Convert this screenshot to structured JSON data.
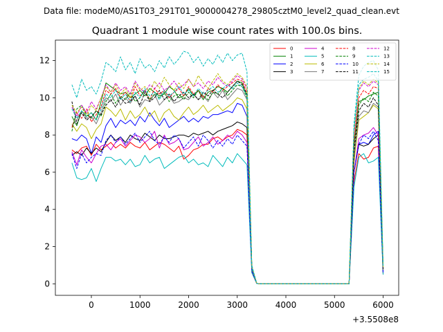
{
  "figure": {
    "suptitle": "Data file: modeM0/AS1T03_291T01_9000004278_29805cztM0_level2_quad_clean.evt"
  },
  "chart_data": {
    "type": "line",
    "title": "Quadrant 1 module wise count rates with 100.0s bins.",
    "xlabel": "",
    "ylabel": "",
    "x_offset_label": "+3.5508e8",
    "xlim": [
      -740,
      6320
    ],
    "ylim": [
      -0.62,
      13.1
    ],
    "x_ticks": [
      0,
      1000,
      2000,
      3000,
      4000,
      5000,
      6000
    ],
    "y_ticks": [
      0,
      2,
      4,
      6,
      8,
      10,
      12
    ],
    "legend": {
      "location": "top-right",
      "columns": 4
    },
    "gap": {
      "x": [
        3450,
        5250
      ]
    },
    "x_segment1": [
      -400,
      -300,
      -200,
      -100,
      0,
      100,
      200,
      300,
      400,
      500,
      600,
      700,
      800,
      900,
      1000,
      1100,
      1200,
      1300,
      1400,
      1500,
      1600,
      1700,
      1800,
      1900,
      2000,
      2100,
      2200,
      2300,
      2400,
      2500,
      2600,
      2700,
      2800,
      2900,
      3000,
      3100,
      3200,
      3300,
      3400
    ],
    "x_segment2": [
      5300,
      5400,
      5500,
      5600,
      5700,
      5800,
      5900,
      6000
    ],
    "series": [
      {
        "name": "0",
        "color": "#ff0000",
        "dash": "solid",
        "seg1": [
          7.2,
          7.0,
          7.3,
          7.4,
          6.9,
          7.5,
          7.2,
          7.4,
          7.6,
          7.3,
          7.5,
          7.3,
          7.6,
          7.4,
          7.3,
          7.6,
          7.2,
          7.4,
          7.6,
          7.5,
          7.3,
          7.1,
          7.4,
          6.7,
          6.9,
          7.2,
          7.3,
          7.5,
          7.5,
          7.8,
          7.9,
          7.7,
          7.9,
          8.0,
          8.3,
          8.2,
          8.0,
          0.6,
          0.02
        ],
        "seg2": [
          0.0,
          5.5,
          7.0,
          6.7,
          6.8,
          7.3,
          7.4,
          0.6
        ]
      },
      {
        "name": "1",
        "color": "#008000",
        "dash": "solid",
        "seg1": [
          9.0,
          8.5,
          9.3,
          9.0,
          9.2,
          8.8,
          9.8,
          10.8,
          10.6,
          10.4,
          10.2,
          10.3,
          10.0,
          10.2,
          10.4,
          10.1,
          10.5,
          10.3,
          10.1,
          10.2,
          10.6,
          10.4,
          10.0,
          10.1,
          10.5,
          10.1,
          10.4,
          9.9,
          10.3,
          10.4,
          10.6,
          10.5,
          10.3,
          10.6,
          10.9,
          10.8,
          10.1,
          0.9,
          0.02
        ],
        "seg2": [
          0.0,
          7.5,
          9.8,
          9.9,
          10.1,
          10.2,
          10.3,
          0.8
        ]
      },
      {
        "name": "2",
        "color": "#0000ff",
        "dash": "solid",
        "seg1": [
          7.8,
          7.7,
          8.0,
          7.8,
          7.0,
          7.9,
          7.6,
          8.5,
          8.9,
          8.4,
          8.8,
          8.6,
          8.8,
          8.5,
          9.0,
          8.7,
          9.2,
          8.8,
          8.5,
          8.9,
          8.4,
          8.6,
          8.8,
          9.0,
          8.7,
          8.9,
          8.7,
          9.0,
          8.9,
          9.1,
          9.1,
          9.2,
          9.3,
          9.2,
          9.7,
          9.6,
          9.0,
          0.8,
          0.02
        ],
        "seg2": [
          0.0,
          6.0,
          7.5,
          7.6,
          7.5,
          8.0,
          8.2,
          0.7
        ]
      },
      {
        "name": "3",
        "color": "#000000",
        "dash": "solid",
        "seg1": [
          6.9,
          7.1,
          6.9,
          7.3,
          7.0,
          7.3,
          7.1,
          7.6,
          8.0,
          7.7,
          7.9,
          7.6,
          8.0,
          7.8,
          7.7,
          8.1,
          7.9,
          7.7,
          8.0,
          7.8,
          7.8,
          7.9,
          8.0,
          8.0,
          7.9,
          8.1,
          8.0,
          8.1,
          8.2,
          8.0,
          8.2,
          8.3,
          8.4,
          8.5,
          8.7,
          8.6,
          8.4,
          0.7,
          0.02
        ],
        "seg2": [
          0.0,
          6.0,
          7.5,
          7.4,
          7.5,
          7.8,
          8.0,
          0.5
        ]
      },
      {
        "name": "4",
        "color": "#cc00cc",
        "dash": "solid",
        "seg1": [
          7.1,
          6.4,
          7.2,
          6.8,
          6.5,
          7.0,
          7.4,
          7.5,
          7.2,
          7.6,
          7.8,
          7.4,
          7.7,
          8.0,
          7.9,
          7.6,
          7.8,
          8.2,
          7.3,
          8.0,
          7.5,
          7.6,
          7.8,
          7.2,
          7.3,
          7.6,
          7.9,
          7.4,
          7.6,
          7.9,
          7.5,
          7.7,
          8.0,
          7.8,
          8.2,
          8.0,
          7.6,
          0.7,
          0.02
        ],
        "seg2": [
          0.0,
          6.0,
          7.8,
          8.0,
          8.1,
          8.4,
          8.0,
          0.6
        ]
      },
      {
        "name": "5",
        "color": "#00bbbb",
        "dash": "solid",
        "seg1": [
          6.5,
          5.7,
          5.6,
          5.7,
          6.2,
          5.5,
          6.2,
          6.8,
          6.8,
          6.6,
          6.7,
          6.4,
          6.7,
          6.3,
          6.4,
          6.9,
          6.5,
          6.7,
          6.8,
          6.2,
          6.4,
          6.6,
          6.8,
          6.9,
          6.5,
          6.7,
          6.4,
          6.5,
          6.3,
          6.9,
          6.6,
          6.3,
          6.8,
          6.5,
          7.0,
          6.7,
          6.4,
          0.6,
          0.02
        ],
        "seg2": [
          0.0,
          5.2,
          6.8,
          7.0,
          6.5,
          6.6,
          6.8,
          0.5
        ]
      },
      {
        "name": "6",
        "color": "#bbbb00",
        "dash": "solid",
        "seg1": [
          8.6,
          8.2,
          8.6,
          8.4,
          7.8,
          8.3,
          8.6,
          9.5,
          9.3,
          9.0,
          9.4,
          8.8,
          9.3,
          8.9,
          9.1,
          9.5,
          9.0,
          9.3,
          8.7,
          9.2,
          9.4,
          9.0,
          8.8,
          9.2,
          9.5,
          9.1,
          9.3,
          9.6,
          9.2,
          9.4,
          9.6,
          9.3,
          9.5,
          9.7,
          10.0,
          9.9,
          9.4,
          0.8,
          0.02
        ],
        "seg2": [
          0.0,
          6.5,
          8.8,
          9.0,
          9.2,
          9.6,
          9.4,
          0.7
        ]
      },
      {
        "name": "7",
        "color": "#777777",
        "dash": "solid",
        "seg1": [
          8.5,
          8.8,
          9.3,
          8.9,
          9.0,
          8.6,
          9.2,
          10.0,
          9.8,
          10.2,
          9.6,
          10.0,
          9.7,
          10.1,
          9.5,
          9.9,
          9.8,
          10.2,
          9.6,
          9.9,
          10.1,
          9.7,
          9.8,
          10.0,
          9.9,
          10.2,
          9.9,
          10.1,
          9.8,
          10.3,
          10.0,
          10.4,
          9.9,
          10.2,
          10.5,
          10.4,
          9.9,
          0.8,
          0.02
        ],
        "seg2": [
          0.0,
          6.8,
          9.0,
          9.3,
          9.2,
          9.7,
          9.5,
          0.7
        ]
      },
      {
        "name": "8",
        "color": "#ff0000",
        "dash": "dash",
        "seg1": [
          8.4,
          9.2,
          8.9,
          9.4,
          8.7,
          9.1,
          9.5,
          10.4,
          10.2,
          10.5,
          10.0,
          10.3,
          9.8,
          10.6,
          10.1,
          10.4,
          9.9,
          10.5,
          10.2,
          10.4,
          10.0,
          10.3,
          10.5,
          10.1,
          10.6,
          10.2,
          10.4,
          10.0,
          10.5,
          10.3,
          10.7,
          10.4,
          10.6,
          10.8,
          11.0,
          10.9,
          10.3,
          0.9,
          0.02
        ],
        "seg2": [
          0.0,
          7.6,
          10.0,
          10.4,
          10.2,
          10.6,
          10.5,
          0.8
        ]
      },
      {
        "name": "9",
        "color": "#008000",
        "dash": "dash",
        "seg1": [
          8.2,
          9.4,
          9.6,
          9.1,
          8.9,
          9.3,
          9.0,
          9.8,
          10.2,
          9.7,
          10.1,
          9.9,
          10.3,
          9.8,
          10.0,
          10.4,
          9.9,
          10.2,
          10.0,
          10.3,
          9.8,
          10.1,
          10.2,
          9.9,
          10.3,
          10.0,
          10.4,
          10.1,
          9.9,
          10.3,
          10.2,
          10.5,
          10.1,
          10.4,
          10.7,
          10.6,
          10.0,
          0.9,
          0.02
        ],
        "seg2": [
          0.0,
          7.3,
          9.6,
          10.0,
          9.8,
          10.3,
          10.1,
          0.8
        ]
      },
      {
        "name": "10",
        "color": "#0000ff",
        "dash": "dash",
        "seg1": [
          7.0,
          6.2,
          7.0,
          6.5,
          6.8,
          7.0,
          6.9,
          7.7,
          8.0,
          7.6,
          7.9,
          7.5,
          7.8,
          8.1,
          7.6,
          7.9,
          8.2,
          7.7,
          7.5,
          7.9,
          7.6,
          8.0,
          7.8,
          7.3,
          7.6,
          7.9,
          7.4,
          8.0,
          7.7,
          7.3,
          7.7,
          7.4,
          7.8,
          7.5,
          8.0,
          7.7,
          7.4,
          0.7,
          0.02
        ],
        "seg2": [
          0.0,
          6.0,
          7.5,
          8.0,
          7.8,
          8.2,
          7.7,
          0.6
        ]
      },
      {
        "name": "11",
        "color": "#000000",
        "dash": "dash",
        "seg1": [
          9.8,
          8.6,
          9.2,
          8.8,
          9.0,
          9.3,
          9.1,
          9.6,
          9.9,
          9.5,
          10.0,
          9.7,
          9.8,
          10.1,
          9.6,
          10.3,
          9.8,
          10.0,
          10.4,
          9.9,
          10.2,
          9.8,
          10.1,
          10.3,
          10.0,
          10.2,
          9.9,
          10.3,
          10.1,
          10.4,
          10.2,
          10.0,
          10.3,
          10.6,
          10.9,
          10.7,
          10.2,
          0.9,
          0.02
        ],
        "seg2": [
          0.0,
          7.1,
          9.3,
          9.7,
          9.5,
          10.0,
          9.6,
          0.8
        ]
      },
      {
        "name": "12",
        "color": "#cc00cc",
        "dash": "dash",
        "seg1": [
          9.5,
          9.0,
          9.6,
          9.2,
          9.8,
          9.4,
          10.0,
          10.7,
          10.3,
          10.8,
          10.4,
          10.6,
          10.2,
          10.9,
          10.5,
          10.3,
          10.7,
          10.5,
          10.8,
          10.4,
          10.6,
          10.9,
          10.5,
          10.7,
          11.0,
          10.6,
          10.8,
          10.5,
          10.9,
          10.7,
          11.1,
          10.8,
          10.6,
          10.9,
          11.2,
          11.0,
          10.5,
          0.9,
          0.02
        ],
        "seg2": [
          0.0,
          8.0,
          10.4,
          10.8,
          10.6,
          10.9,
          10.7,
          0.9
        ]
      },
      {
        "name": "13",
        "color": "#00bbbb",
        "dash": "dash",
        "seg1": [
          10.7,
          10.0,
          11.0,
          10.4,
          10.6,
          10.2,
          10.9,
          11.9,
          11.7,
          11.4,
          12.2,
          11.5,
          11.9,
          11.3,
          12.1,
          11.6,
          11.8,
          11.4,
          12.0,
          11.6,
          12.2,
          11.8,
          12.1,
          12.5,
          12.4,
          11.9,
          12.2,
          11.7,
          12.1,
          11.8,
          12.3,
          11.9,
          12.4,
          12.0,
          12.3,
          12.4,
          11.4,
          1.0,
          0.02
        ],
        "seg2": [
          0.0,
          8.6,
          11.2,
          11.7,
          11.9,
          12.0,
          11.5,
          1.0
        ]
      },
      {
        "name": "14",
        "color": "#bbbb00",
        "dash": "dash",
        "seg1": [
          9.6,
          9.2,
          9.5,
          9.0,
          9.6,
          9.3,
          10.0,
          10.6,
          10.3,
          10.7,
          10.2,
          10.5,
          10.0,
          10.8,
          10.4,
          10.6,
          10.3,
          10.9,
          10.5,
          11.1,
          10.7,
          10.4,
          10.8,
          10.5,
          11.0,
          10.6,
          11.2,
          10.8,
          10.5,
          10.9,
          11.3,
          10.9,
          10.7,
          11.0,
          11.3,
          11.1,
          10.6,
          0.9,
          0.02
        ],
        "seg2": [
          0.0,
          8.2,
          10.5,
          10.9,
          10.7,
          11.0,
          10.8,
          0.9
        ]
      },
      {
        "name": "15",
        "color": "#00bbbb",
        "dash": "dash",
        "seg1": [
          9.4,
          8.9,
          9.3,
          9.0,
          9.2,
          8.8,
          9.4,
          10.2,
          10.0,
          10.4,
          9.9,
          10.2,
          9.8,
          10.3,
          10.0,
          10.5,
          10.1,
          10.3,
          9.9,
          10.4,
          10.1,
          10.3,
          10.6,
          10.2,
          10.4,
          10.1,
          10.5,
          10.2,
          10.4,
          10.6,
          10.3,
          10.5,
          10.7,
          10.5,
          10.8,
          10.6,
          10.1,
          0.9,
          0.02
        ],
        "seg2": [
          0.0,
          8.3,
          10.7,
          11.0,
          11.1,
          11.3,
          10.9,
          0.9
        ]
      }
    ]
  }
}
